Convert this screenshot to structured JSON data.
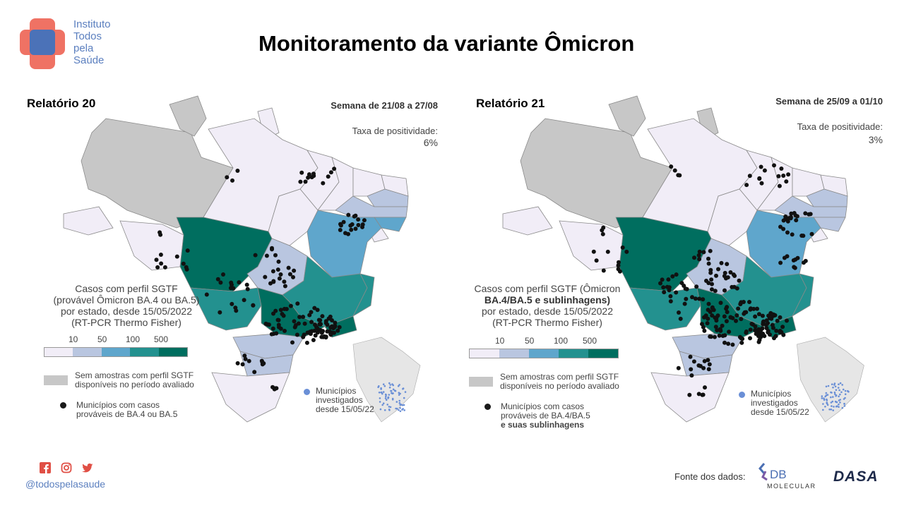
{
  "brand": {
    "logo_lines": [
      "Instituto",
      "Todos",
      "pela",
      "Saúde"
    ],
    "colors": {
      "red": "#ee6a5c",
      "blue": "#4b72b8",
      "text": "#5b7fbf"
    }
  },
  "title": "Monitoramento da variante Ômicron",
  "panels": [
    {
      "report": "Relatório 20",
      "week": "Semana de 21/08 a 27/08",
      "rate_label": "Taxa de positividade:",
      "rate_value": "6%",
      "legend_title_lines": [
        "Casos com perfil SGTF",
        "(provável Ômicron BA.4 ou BA.5)",
        "por estado, desde 15/05/2022",
        "(RT-PCR Thermo Fisher)"
      ],
      "ticks": [
        "10",
        "50",
        "100",
        "500"
      ],
      "nosample_lines": [
        "Sem amostras com perfil SGTF",
        "disponíveis no período avaliado"
      ],
      "dot_lines": [
        "Municípios com casos",
        "prováveis de BA.4 ou BA.5"
      ],
      "mini_lines": [
        "Municípios",
        "investigados",
        "desde 15/05/22"
      ]
    },
    {
      "report": "Relatório 21",
      "week": "Semana de 25/09 a 01/10",
      "rate_label": "Taxa de positividade:",
      "rate_value": "3%",
      "legend_title_lines": [
        "Casos com perfil SGTF (Ômicron",
        "BA.4/BA.5 e sublinhagens)",
        "por estado, desde 15/05/2022",
        "(RT-PCR Thermo Fisher)"
      ],
      "ticks": [
        "10",
        "50",
        "100",
        "500"
      ],
      "nosample_lines": [
        "Sem amostras com perfil SGTF",
        "disponíveis no período avaliado"
      ],
      "dot_lines": [
        "Municípios com casos",
        "prováveis de BA.4/BA.5",
        "e suas sublinhagens"
      ],
      "mini_lines": [
        "Municípios",
        "investigados",
        "desde 15/05/22"
      ]
    }
  ],
  "scale_colors": [
    "#f1edf7",
    "#b9c6e0",
    "#5fa6cc",
    "#23918f",
    "#006e5f"
  ],
  "nosample_color": "#c7c7c7",
  "footer": {
    "handle": "@todospelasaude",
    "source_label": "Fonte dos dados:",
    "db_logo_text": "DB",
    "db_logo_sub": "MOLECULAR",
    "dasa_logo": "DASA"
  },
  "social_icons": [
    "facebook-icon",
    "instagram-icon",
    "twitter-icon"
  ]
}
